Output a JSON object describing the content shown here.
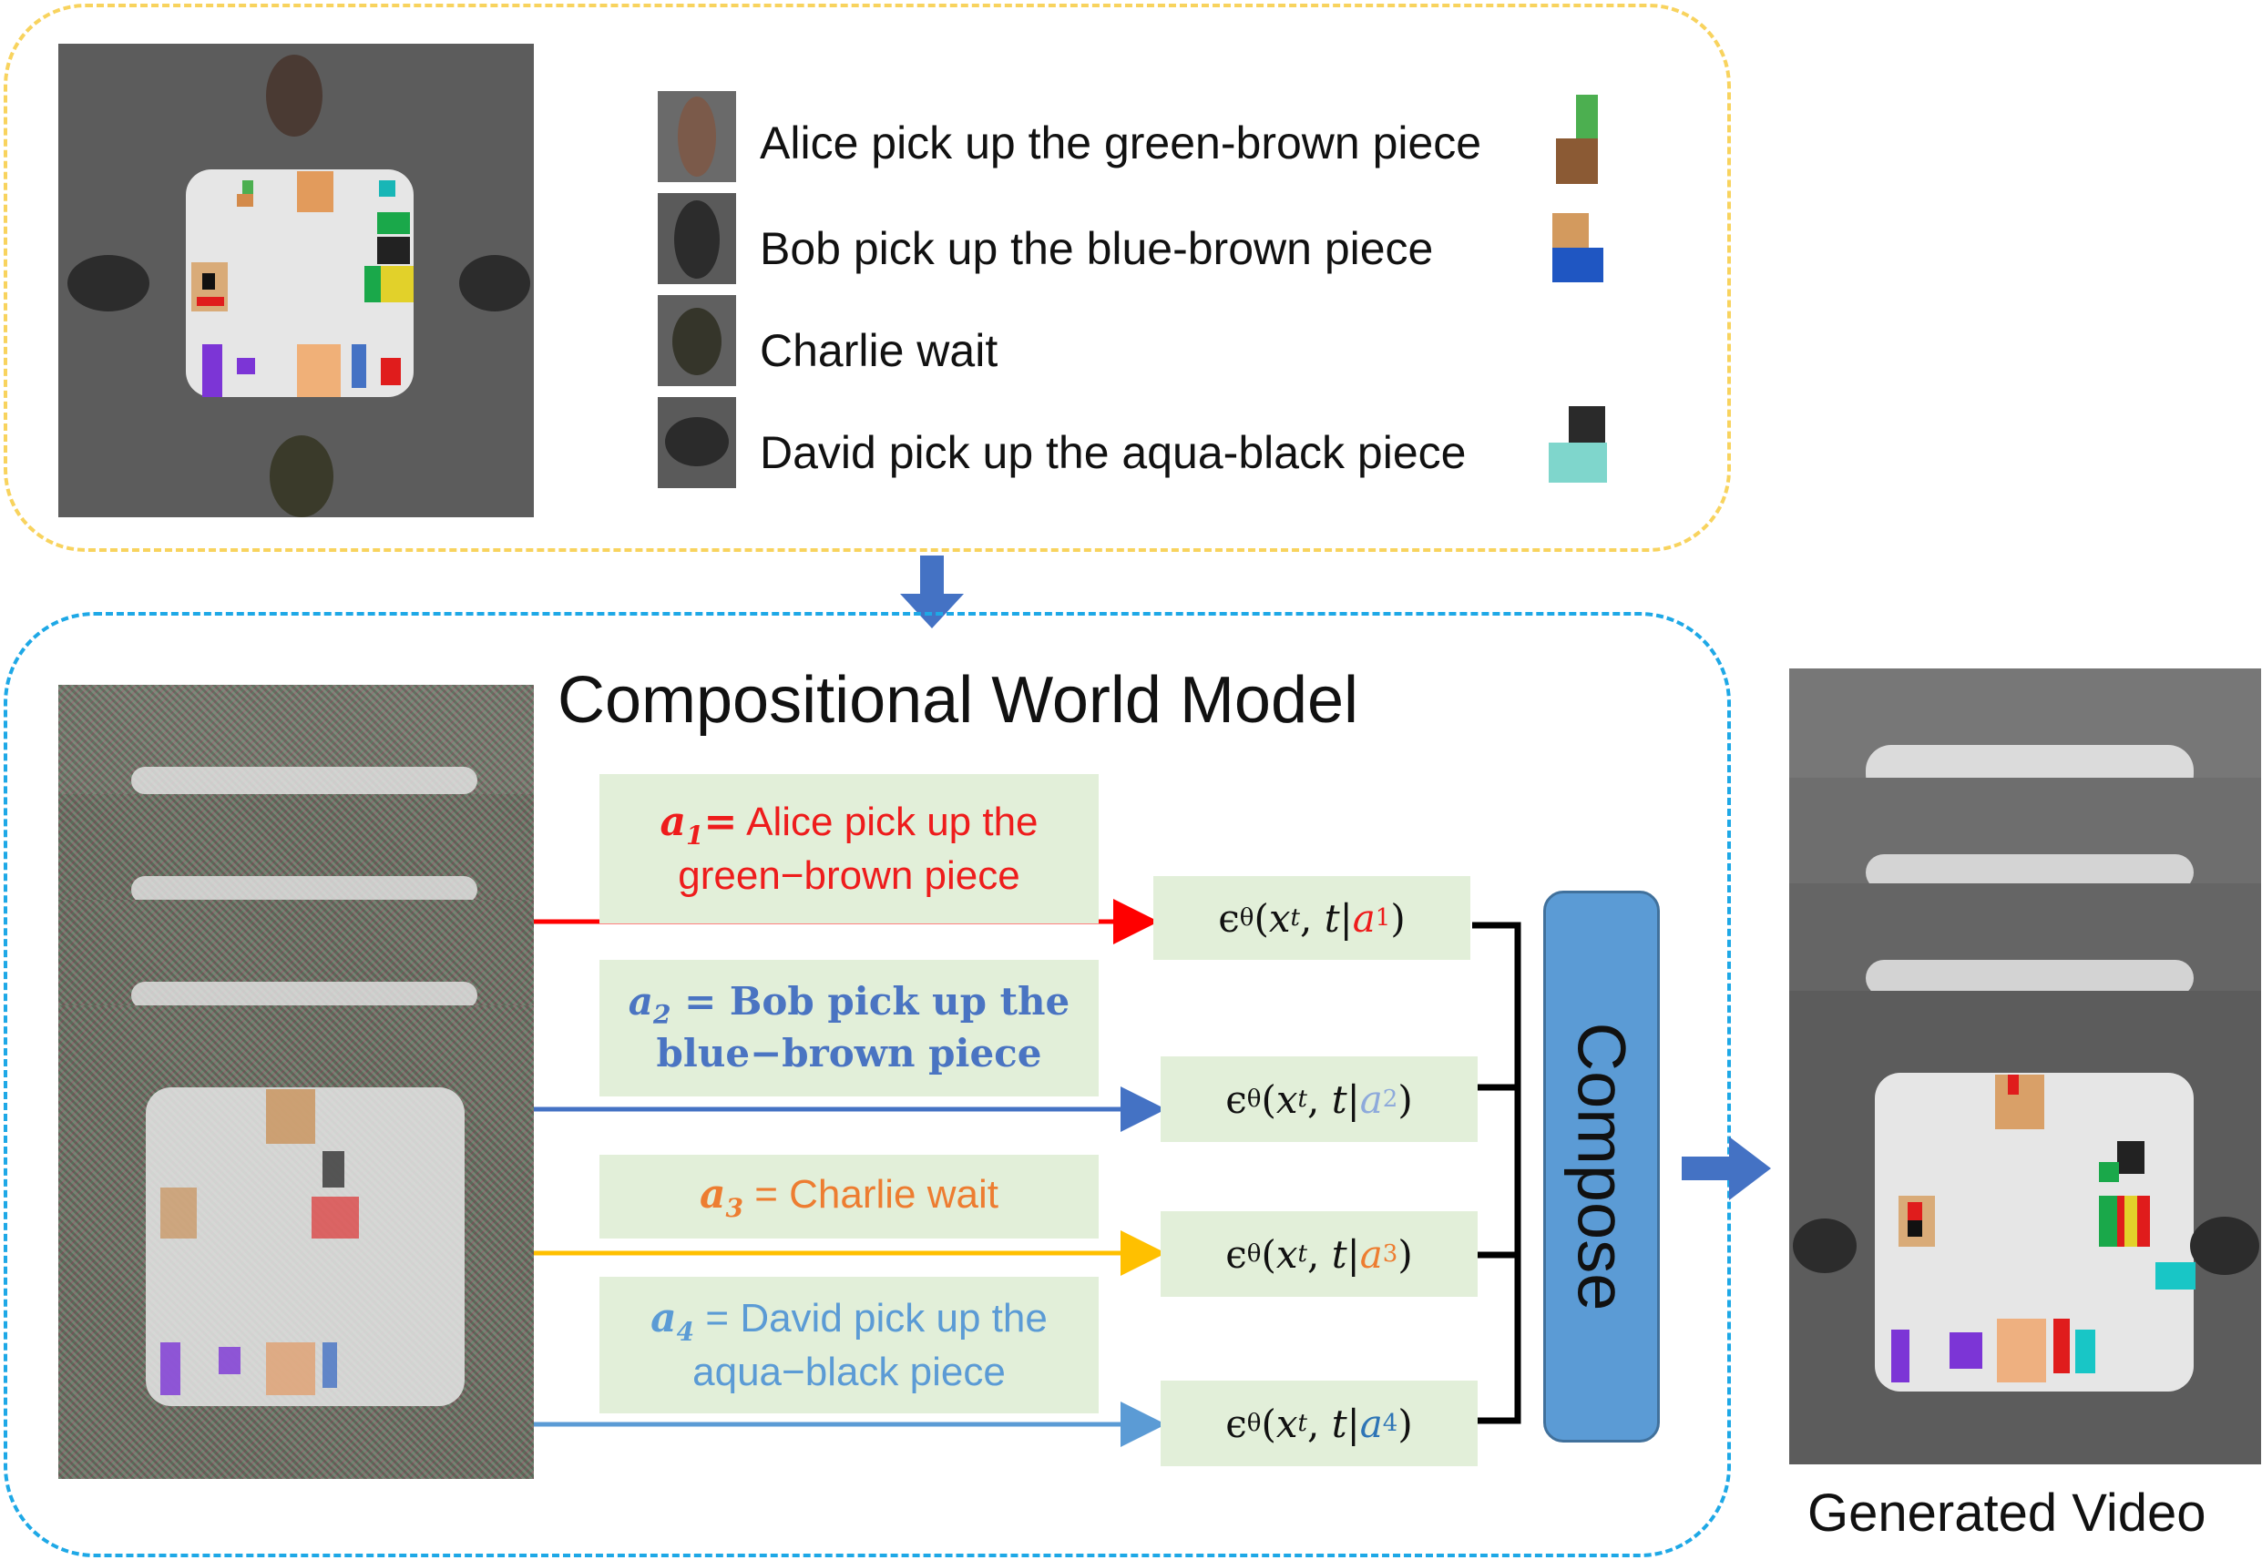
{
  "legend": {
    "items": [
      {
        "label": "Alice pick up the green-brown piece"
      },
      {
        "label": "Bob pick up the blue-brown piece"
      },
      {
        "label": "Charlie wait"
      },
      {
        "label": "David pick up the aqua-black piece"
      }
    ]
  },
  "model": {
    "title": "Compositional World Model",
    "compose_label": "Compose"
  },
  "actions": [
    {
      "symbol": "a",
      "sub": "1",
      "eq": "=",
      "line1": "Alice pick up the",
      "line2": "green−brown piece",
      "color": "#ee1c1c"
    },
    {
      "symbol": "a",
      "sub": "2",
      "eq": "=",
      "line1": "Bob pick up the",
      "line2": "blue−brown piece",
      "color": "#4a74c2"
    },
    {
      "symbol": "a",
      "sub": "3",
      "eq": "=",
      "line1": "Charlie wait",
      "line2": "",
      "color": "#ed7d31"
    },
    {
      "symbol": "a",
      "sub": "4",
      "eq": "=",
      "line1": "David pick up the",
      "line2": "aqua−black piece",
      "color": "#5b9bd5"
    }
  ],
  "noise_terms": [
    {
      "eps": "ϵ",
      "theta": "θ",
      "x": "x",
      "t_sub": "t",
      "t": "t",
      "a": "a",
      "a_sub": "1",
      "color": "#ee1c1c"
    },
    {
      "eps": "ϵ",
      "theta": "θ",
      "x": "x",
      "t_sub": "t",
      "t": "t",
      "a": "a",
      "a_sub": "2",
      "color": "#8eaadb"
    },
    {
      "eps": "ϵ",
      "theta": "θ",
      "x": "x",
      "t_sub": "t",
      "t": "t",
      "a": "a",
      "a_sub": "3",
      "color": "#ed7d31"
    },
    {
      "eps": "ϵ",
      "theta": "θ",
      "x": "x",
      "t_sub": "t",
      "t": "t",
      "a": "a",
      "a_sub": "4",
      "color": "#2e75b6"
    }
  ],
  "output": {
    "label": "Generated Video"
  },
  "colors": {
    "top_border": "#f8d35e",
    "model_border": "#1ea8e6",
    "arrow_block": "#4472c4",
    "compose_fill": "#5b9bd5",
    "line_a1": "#ff0000",
    "line_a2": "#4472c4",
    "line_a3": "#ffc000",
    "line_a4": "#5b9bd5"
  }
}
